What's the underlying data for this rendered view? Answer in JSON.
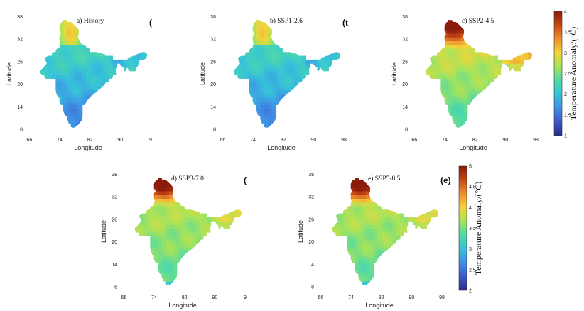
{
  "map": {
    "xlabel": "Longitude",
    "ylabel": "Latitude",
    "xticks": [
      "66",
      "74",
      "82",
      "90",
      "98"
    ],
    "yticks": [
      "8",
      "14",
      "20",
      "26",
      "32",
      "38"
    ],
    "colormap": [
      "#2d2a8a",
      "#3b58c9",
      "#3f8ee6",
      "#36c3d8",
      "#4fd9a6",
      "#a7e35a",
      "#f2d43a",
      "#f09030",
      "#c64a14",
      "#8a1a0a"
    ],
    "panels": [
      {
        "key": "history",
        "title": "a) History",
        "artifact": "(",
        "scale": 0,
        "xticks": [
          "66",
          "74",
          "82",
          "90",
          "9"
        ]
      },
      {
        "key": "ssp126",
        "title": "b) SSP1-2.6",
        "artifact": "(t",
        "scale": 0,
        "xticks": [
          "66",
          "74",
          "82",
          "90",
          "98"
        ]
      },
      {
        "key": "ssp245",
        "title": "c) SSP2-4.5",
        "artifact": "",
        "scale": 1,
        "xticks": [
          "66",
          "74",
          "82",
          "90",
          "98"
        ]
      },
      {
        "key": "ssp370",
        "title": "d) SSP3-7.0",
        "artifact": "(",
        "scale": 2,
        "xticks": [
          "66",
          "74",
          "82",
          "90",
          "9"
        ]
      },
      {
        "key": "ssp585",
        "title": "e) SSP5-8.5",
        "artifact": "(e)",
        "scale": 2,
        "xticks": [
          "66",
          "74",
          "82",
          "90",
          "98"
        ]
      }
    ]
  },
  "colorbars": [
    {
      "label": "Temperature Anomaly/(°C)",
      "ticks": [
        "1",
        "2",
        "3",
        "4"
      ],
      "range": [
        1,
        4
      ]
    },
    {
      "label": "Temperature Anomaly/(°C)",
      "ticks": [
        "2",
        "3",
        "4",
        "5"
      ],
      "range": [
        2,
        5
      ]
    }
  ]
}
